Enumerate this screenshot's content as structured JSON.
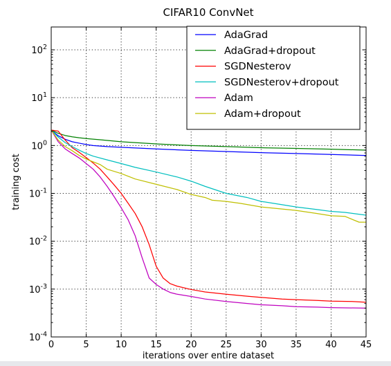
{
  "chart_data": {
    "type": "line",
    "title": "CIFAR10 ConvNet",
    "xlabel": "iterations over entire dataset",
    "ylabel": "training cost",
    "xlim": [
      0,
      45
    ],
    "ylim": [
      0.0001,
      300
    ],
    "yscale": "log",
    "grid": true,
    "legend_position": "top-right",
    "x_ticks": [
      0,
      5,
      10,
      15,
      20,
      25,
      30,
      35,
      40,
      45
    ],
    "x_tick_labels": [
      "0",
      "5",
      "10",
      "15",
      "20",
      "25",
      "30",
      "35",
      "40",
      "45"
    ],
    "y_ticks": [
      0.0001,
      0.001,
      0.01,
      0.1,
      1,
      10,
      100
    ],
    "y_tick_labels": [
      {
        "base": "10",
        "exp": "-4"
      },
      {
        "base": "10",
        "exp": "-3"
      },
      {
        "base": "10",
        "exp": "-2"
      },
      {
        "base": "10",
        "exp": "-1"
      },
      {
        "base": "10",
        "exp": "0"
      },
      {
        "base": "10",
        "exp": "1"
      },
      {
        "base": "10",
        "exp": "2"
      }
    ],
    "series": [
      {
        "name": "AdaGrad",
        "color": "#0000ff",
        "points": [
          [
            0,
            2.1
          ],
          [
            1,
            1.6
          ],
          [
            2,
            1.35
          ],
          [
            3,
            1.2
          ],
          [
            4,
            1.12
          ],
          [
            5,
            1.05
          ],
          [
            6,
            1.0
          ],
          [
            8,
            0.95
          ],
          [
            10,
            0.92
          ],
          [
            15,
            0.85
          ],
          [
            20,
            0.79
          ],
          [
            25,
            0.75
          ],
          [
            30,
            0.71
          ],
          [
            35,
            0.68
          ],
          [
            40,
            0.65
          ],
          [
            45,
            0.62
          ]
        ]
      },
      {
        "name": "AdaGrad+dropout",
        "color": "#008000",
        "points": [
          [
            0,
            2.1
          ],
          [
            1,
            1.8
          ],
          [
            2,
            1.62
          ],
          [
            3,
            1.52
          ],
          [
            4,
            1.45
          ],
          [
            5,
            1.4
          ],
          [
            7,
            1.32
          ],
          [
            10,
            1.2
          ],
          [
            15,
            1.08
          ],
          [
            20,
            1.0
          ],
          [
            25,
            0.95
          ],
          [
            30,
            0.9
          ],
          [
            35,
            0.87
          ],
          [
            40,
            0.84
          ],
          [
            45,
            0.8
          ]
        ]
      },
      {
        "name": "SGDNesterov",
        "color": "#ff0000",
        "points": [
          [
            0,
            2.1
          ],
          [
            1,
            2.0
          ],
          [
            2,
            1.3
          ],
          [
            3,
            0.9
          ],
          [
            4,
            0.72
          ],
          [
            5,
            0.56
          ],
          [
            6,
            0.43
          ],
          [
            7,
            0.32
          ],
          [
            8,
            0.22
          ],
          [
            9,
            0.15
          ],
          [
            10,
            0.1
          ],
          [
            11,
            0.062
          ],
          [
            12,
            0.038
          ],
          [
            13,
            0.02
          ],
          [
            14,
            0.0085
          ],
          [
            15,
            0.003
          ],
          [
            16,
            0.0017
          ],
          [
            17,
            0.0013
          ],
          [
            18,
            0.00115
          ],
          [
            20,
            0.00098
          ],
          [
            22,
            0.00087
          ],
          [
            25,
            0.00078
          ],
          [
            28,
            0.00071
          ],
          [
            30,
            0.00067
          ],
          [
            33,
            0.00062
          ],
          [
            35,
            0.0006
          ],
          [
            38,
            0.00058
          ],
          [
            40,
            0.00056
          ],
          [
            43,
            0.00055
          ],
          [
            45,
            0.00053
          ]
        ]
      },
      {
        "name": "SGDNesterov+dropout",
        "color": "#00bfbf",
        "points": [
          [
            0,
            2.1
          ],
          [
            1,
            1.5
          ],
          [
            2,
            1.15
          ],
          [
            3,
            0.95
          ],
          [
            4,
            0.8
          ],
          [
            5,
            0.68
          ],
          [
            6,
            0.6
          ],
          [
            8,
            0.5
          ],
          [
            10,
            0.42
          ],
          [
            12,
            0.35
          ],
          [
            15,
            0.28
          ],
          [
            18,
            0.22
          ],
          [
            20,
            0.18
          ],
          [
            22,
            0.14
          ],
          [
            25,
            0.1
          ],
          [
            28,
            0.082
          ],
          [
            30,
            0.068
          ],
          [
            33,
            0.058
          ],
          [
            35,
            0.052
          ],
          [
            38,
            0.046
          ],
          [
            40,
            0.042
          ],
          [
            42,
            0.04
          ],
          [
            45,
            0.035
          ]
        ]
      },
      {
        "name": "Adam",
        "color": "#bf00bf",
        "points": [
          [
            0,
            2.1
          ],
          [
            1,
            1.2
          ],
          [
            2,
            0.85
          ],
          [
            3,
            0.68
          ],
          [
            4,
            0.55
          ],
          [
            5,
            0.42
          ],
          [
            6,
            0.32
          ],
          [
            7,
            0.22
          ],
          [
            8,
            0.14
          ],
          [
            9,
            0.085
          ],
          [
            10,
            0.05
          ],
          [
            11,
            0.028
          ],
          [
            12,
            0.013
          ],
          [
            13,
            0.0045
          ],
          [
            14,
            0.0017
          ],
          [
            15,
            0.00125
          ],
          [
            16,
            0.001
          ],
          [
            17,
            0.00085
          ],
          [
            18,
            0.00078
          ],
          [
            20,
            0.0007
          ],
          [
            22,
            0.00062
          ],
          [
            25,
            0.00055
          ],
          [
            28,
            0.0005
          ],
          [
            30,
            0.00047
          ],
          [
            33,
            0.00045
          ],
          [
            35,
            0.00043
          ],
          [
            38,
            0.00042
          ],
          [
            40,
            0.00041
          ],
          [
            45,
            0.0004
          ]
        ]
      },
      {
        "name": "Adam+dropout",
        "color": "#bfbf00",
        "points": [
          [
            0,
            2.1
          ],
          [
            1,
            1.3
          ],
          [
            2,
            0.95
          ],
          [
            3,
            0.78
          ],
          [
            4,
            0.62
          ],
          [
            5,
            0.52
          ],
          [
            7,
            0.4
          ],
          [
            8,
            0.32
          ],
          [
            10,
            0.26
          ],
          [
            12,
            0.2
          ],
          [
            15,
            0.155
          ],
          [
            18,
            0.12
          ],
          [
            20,
            0.095
          ],
          [
            22,
            0.082
          ],
          [
            23,
            0.072
          ],
          [
            25,
            0.068
          ],
          [
            27,
            0.062
          ],
          [
            30,
            0.052
          ],
          [
            33,
            0.047
          ],
          [
            35,
            0.044
          ],
          [
            38,
            0.038
          ],
          [
            40,
            0.034
          ],
          [
            42,
            0.033
          ],
          [
            44,
            0.025
          ],
          [
            45,
            0.025
          ]
        ]
      }
    ]
  }
}
